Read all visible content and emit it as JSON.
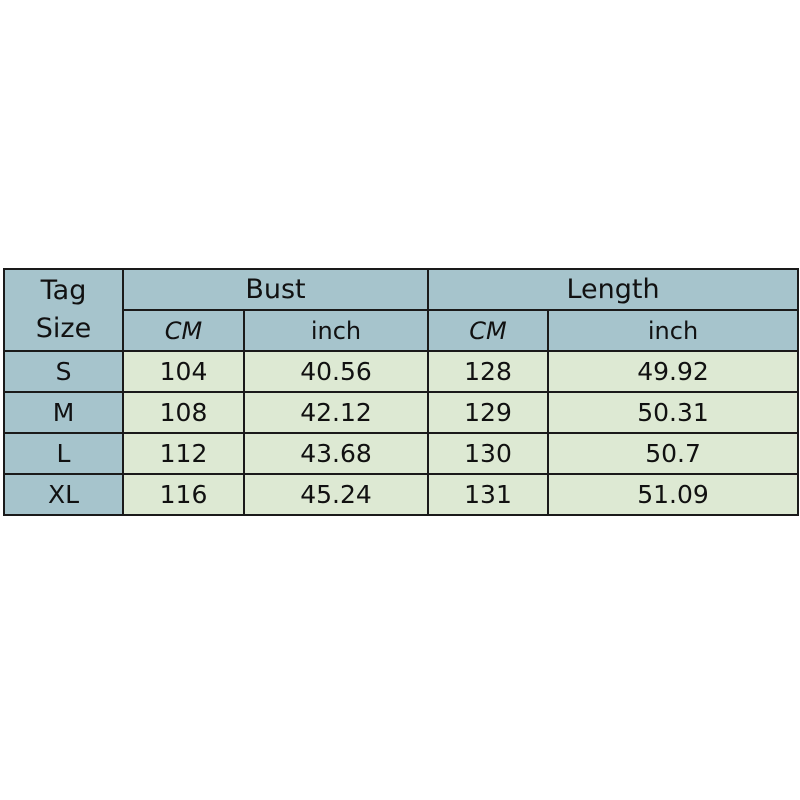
{
  "header": {
    "tag_line1": "Tag",
    "tag_line2": "Size",
    "groups": [
      "Bust",
      "Length"
    ],
    "units": [
      "CM",
      "inch",
      "CM",
      "inch"
    ]
  },
  "rows": [
    {
      "size": "S",
      "bust_cm": "104",
      "bust_inch": "40.56",
      "length_cm": "128",
      "length_inch": "49.92"
    },
    {
      "size": "M",
      "bust_cm": "108",
      "bust_inch": "42.12",
      "length_cm": "129",
      "length_inch": "50.31"
    },
    {
      "size": "L",
      "bust_cm": "112",
      "bust_inch": "43.68",
      "length_cm": "130",
      "length_inch": "50.7"
    },
    {
      "size": "XL",
      "bust_cm": "116",
      "bust_inch": "45.24",
      "length_cm": "131",
      "length_inch": "51.09"
    }
  ],
  "colors": {
    "header": "#a6c4cc",
    "body": "#dde9d3",
    "border": "#1a1a1a"
  }
}
